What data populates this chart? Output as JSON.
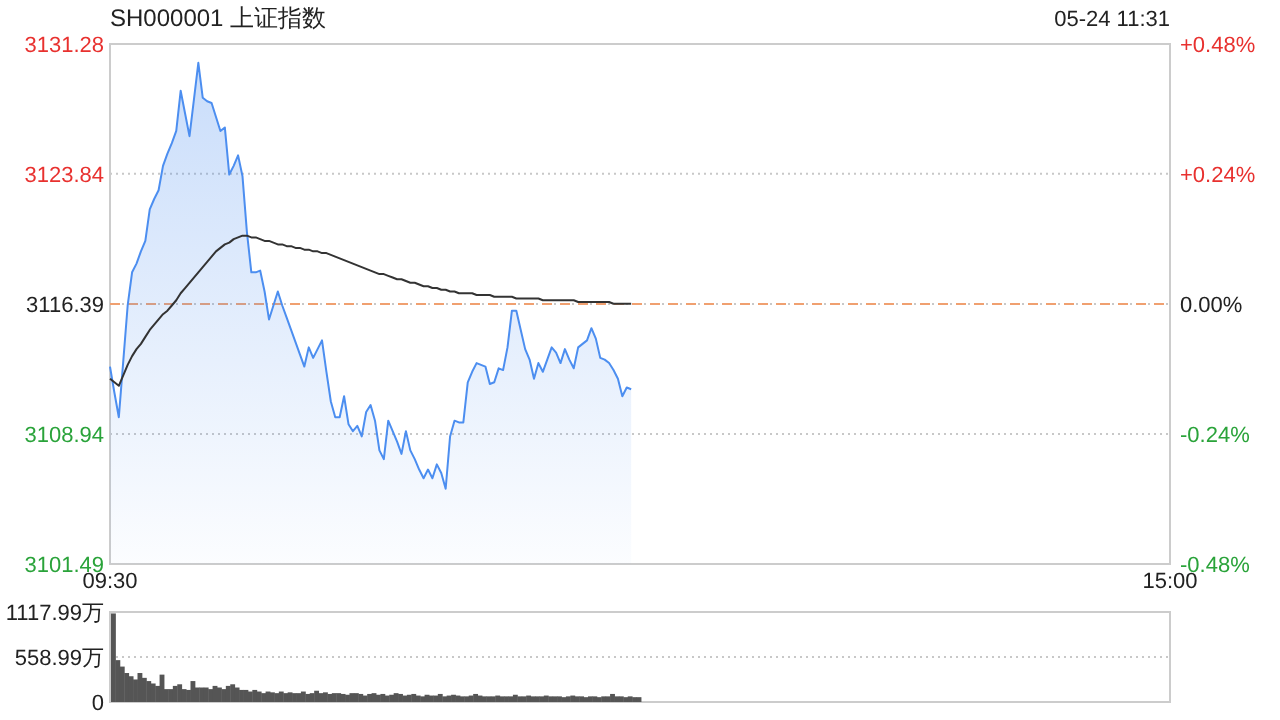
{
  "chart_data": [
    {
      "type": "line",
      "title": "SH000001 上证指数",
      "subtitle": "05-24 11:31",
      "categories": [
        "09:30",
        null,
        null,
        null,
        null,
        null,
        null,
        null,
        null,
        null,
        null,
        null,
        null,
        null,
        null,
        null,
        null,
        null,
        null,
        null,
        null,
        null,
        null,
        null,
        null,
        null,
        null,
        null,
        null,
        null,
        null,
        null,
        null,
        null,
        null,
        null,
        null,
        null,
        null,
        null,
        null,
        null,
        null,
        null,
        null,
        null,
        null,
        null,
        null,
        null,
        null,
        null,
        null,
        null,
        null,
        null,
        null,
        null,
        null,
        null,
        null,
        null,
        null,
        null,
        null,
        null,
        null,
        null,
        null,
        null,
        null,
        null,
        null,
        null,
        null,
        null,
        null,
        null,
        null,
        null,
        null,
        null,
        null,
        null,
        null,
        null,
        null,
        null,
        null,
        null,
        null,
        null,
        null,
        null,
        null,
        null,
        null,
        null,
        null,
        null,
        null,
        null,
        null,
        null,
        null,
        null,
        null,
        null,
        null,
        null,
        null,
        null,
        null,
        null,
        null,
        null,
        null,
        null,
        null,
        null,
        null,
        null,
        null,
        null,
        null,
        null,
        null,
        null,
        null,
        null,
        null,
        null,
        null,
        null,
        null,
        null,
        null,
        null,
        null,
        null,
        null,
        null,
        null,
        null,
        null,
        null,
        null,
        null,
        null,
        null,
        null,
        null,
        null,
        null,
        null,
        null,
        null,
        null,
        null,
        null,
        null,
        null,
        null,
        null,
        null,
        null,
        null,
        null,
        null,
        null,
        null,
        null,
        null,
        null,
        null,
        null,
        null,
        null,
        null,
        null,
        null,
        null,
        null,
        null,
        null,
        null,
        null,
        null,
        null,
        null,
        null,
        null,
        null,
        null,
        null,
        null,
        null,
        null,
        null,
        null,
        null,
        null,
        null,
        null,
        null,
        null,
        null,
        null,
        null,
        null,
        null,
        null,
        null,
        null,
        null,
        null,
        null,
        null,
        null,
        null,
        null,
        null,
        null,
        null,
        null,
        null,
        null,
        null,
        null,
        null,
        null,
        null,
        null,
        null,
        null,
        null,
        null,
        null,
        null,
        null,
        "15:00"
      ],
      "ylim": [
        3101.49,
        3131.28
      ],
      "yticks": [
        3101.49,
        3108.94,
        3116.39,
        3123.84,
        3131.28
      ],
      "y2lim": [
        -0.48,
        0.48
      ],
      "y2ticks": [
        {
          "value": -0.48,
          "label": "-0.48%"
        },
        {
          "value": -0.24,
          "label": "-0.24%"
        },
        {
          "value": 0,
          "label": "0.00%"
        },
        {
          "value": 0.24,
          "label": "+0.24%"
        },
        {
          "value": 0.48,
          "label": "+0.48%"
        }
      ],
      "grid": "y",
      "ref_lines": [
        {
          "axis": "y",
          "value": 3116.39,
          "color": "#f0a070",
          "line_style": "dashed"
        }
      ],
      "series": [
        {
          "type": "area",
          "color": "#4c8ef0",
          "values": [
            3112.8,
            3111.3,
            3109.9,
            3113.1,
            3116.3,
            3118.2,
            3118.7,
            3119.4,
            3120.0,
            3121.8,
            3122.4,
            3122.9,
            3124.3,
            3125.0,
            3125.6,
            3126.3,
            3128.6,
            3127.3,
            3126.0,
            3128.1,
            3130.2,
            3128.2,
            3128.0,
            3127.9,
            3127.1,
            3126.3,
            3126.5,
            3123.8,
            3124.3,
            3124.9,
            3123.7,
            3120.5,
            3118.2,
            3118.2,
            3118.3,
            3117.1,
            3115.5,
            3116.3,
            3117.1,
            3116.3,
            3115.6,
            3114.9,
            3114.2,
            3113.5,
            3112.8,
            3113.9,
            3113.3,
            3113.8,
            3114.3,
            3112.5,
            3110.8,
            3109.9,
            3109.9,
            3111.1,
            3109.5,
            3109.1,
            3109.4,
            3108.8,
            3110.2,
            3110.6,
            3109.7,
            3108.0,
            3107.5,
            3109.7,
            3109.1,
            3108.5,
            3107.8,
            3109.1,
            3108.0,
            3107.5,
            3106.9,
            3106.4,
            3106.9,
            3106.4,
            3107.2,
            3106.7,
            3105.8,
            3108.8,
            3109.7,
            3109.6,
            3109.6,
            3111.9,
            3112.5,
            3113.0,
            3112.9,
            3112.8,
            3111.8,
            3111.9,
            3112.7,
            3112.6,
            3113.9,
            3116.0,
            3116.0,
            3114.9,
            3113.8,
            3113.2,
            3112.1,
            3113.0,
            3112.5,
            3113.2,
            3113.9,
            3113.6,
            3113.0,
            3113.8,
            3113.2,
            3112.7,
            3113.9,
            3114.1,
            3114.3,
            3115.0,
            3114.4,
            3113.3,
            3113.2,
            3113.0,
            3112.6,
            3112.1,
            3111.1,
            3111.6,
            3111.5,
            null,
            null,
            null,
            null,
            null,
            null,
            null,
            null,
            null,
            null,
            null,
            null,
            null,
            null,
            null,
            null,
            null,
            null,
            null,
            null,
            null,
            null,
            null,
            null,
            null,
            null,
            null,
            null,
            null,
            null,
            null,
            null,
            null,
            null,
            null,
            null,
            null,
            null,
            null,
            null,
            null,
            null,
            null,
            null,
            null,
            null,
            null,
            null,
            null,
            null,
            null,
            null,
            null,
            null,
            null,
            null,
            null,
            null,
            null,
            null,
            null,
            null,
            null,
            null,
            null,
            null,
            null,
            null,
            null,
            null,
            null,
            null,
            null,
            null,
            null,
            null,
            null,
            null,
            null,
            null,
            null,
            null,
            null,
            null,
            null,
            null,
            null,
            null,
            null,
            null,
            null,
            null,
            null,
            null,
            null,
            null,
            null,
            null,
            null,
            null,
            null,
            null,
            null,
            null,
            null,
            null,
            null,
            null,
            null,
            null,
            null,
            null,
            null,
            null,
            null,
            null,
            null,
            null,
            null,
            null,
            null,
            null
          ]
        },
        {
          "type": "line",
          "color": "#333333",
          "values": [
            3112.1,
            3111.9,
            3111.7,
            3112.3,
            3112.9,
            3113.4,
            3113.8,
            3114.1,
            3114.5,
            3114.9,
            3115.2,
            3115.5,
            3115.8,
            3116.0,
            3116.3,
            3116.6,
            3117.0,
            3117.3,
            3117.6,
            3117.9,
            3118.2,
            3118.5,
            3118.8,
            3119.1,
            3119.4,
            3119.6,
            3119.8,
            3119.9,
            3120.1,
            3120.2,
            3120.3,
            3120.3,
            3120.2,
            3120.2,
            3120.1,
            3120.0,
            3120.0,
            3119.9,
            3119.8,
            3119.8,
            3119.7,
            3119.7,
            3119.6,
            3119.6,
            3119.5,
            3119.5,
            3119.4,
            3119.4,
            3119.3,
            3119.3,
            3119.2,
            3119.1,
            3119.0,
            3118.9,
            3118.8,
            3118.7,
            3118.6,
            3118.5,
            3118.4,
            3118.3,
            3118.2,
            3118.1,
            3118.1,
            3118.0,
            3117.9,
            3117.8,
            3117.8,
            3117.7,
            3117.6,
            3117.6,
            3117.5,
            3117.4,
            3117.4,
            3117.3,
            3117.3,
            3117.2,
            3117.2,
            3117.1,
            3117.1,
            3117.0,
            3117.0,
            3117.0,
            3117.0,
            3116.9,
            3116.9,
            3116.9,
            3116.9,
            3116.8,
            3116.8,
            3116.8,
            3116.8,
            3116.8,
            3116.7,
            3116.7,
            3116.7,
            3116.7,
            3116.7,
            3116.7,
            3116.6,
            3116.6,
            3116.6,
            3116.6,
            3116.6,
            3116.6,
            3116.6,
            3116.6,
            3116.5,
            3116.5,
            3116.5,
            3116.5,
            3116.5,
            3116.5,
            3116.5,
            3116.5,
            3116.4,
            3116.4,
            3116.4,
            3116.4,
            3116.4,
            null,
            null,
            null,
            null,
            null,
            null,
            null,
            null,
            null,
            null,
            null,
            null,
            null,
            null,
            null,
            null,
            null,
            null,
            null,
            null,
            null,
            null,
            null,
            null,
            null,
            null,
            null,
            null,
            null,
            null,
            null,
            null,
            null,
            null,
            null,
            null,
            null,
            null,
            null,
            null,
            null,
            null,
            null,
            null,
            null,
            null,
            null,
            null,
            null,
            null,
            null,
            null,
            null,
            null,
            null,
            null,
            null,
            null,
            null,
            null,
            null,
            null,
            null,
            null,
            null,
            null,
            null,
            null,
            null,
            null,
            null,
            null,
            null,
            null,
            null,
            null,
            null,
            null,
            null,
            null,
            null,
            null,
            null,
            null,
            null,
            null,
            null,
            null,
            null,
            null,
            null,
            null,
            null,
            null,
            null,
            null,
            null,
            null,
            null,
            null,
            null,
            null,
            null,
            null,
            null,
            null,
            null,
            null,
            null,
            null,
            null,
            null,
            null,
            null,
            null,
            null,
            null,
            null,
            null,
            null,
            null,
            null
          ]
        }
      ]
    },
    {
      "type": "bar",
      "ylim": [
        0,
        1117.99
      ],
      "yticks": [
        0,
        {
          "value": 558.99,
          "label": "558.99万"
        },
        {
          "value": 1117.99,
          "label": "1117.99万"
        }
      ],
      "grid": "y",
      "tick_labels": "y",
      "color": "#555555",
      "categories": [
        null,
        null,
        null,
        null,
        null,
        null,
        null,
        null,
        null,
        null,
        null,
        null,
        null,
        null,
        null,
        null,
        null,
        null,
        null,
        null,
        null,
        null,
        null,
        null,
        null,
        null,
        null,
        null,
        null,
        null,
        null,
        null,
        null,
        null,
        null,
        null,
        null,
        null,
        null,
        null,
        null,
        null,
        null,
        null,
        null,
        null,
        null,
        null,
        null,
        null,
        null,
        null,
        null,
        null,
        null,
        null,
        null,
        null,
        null,
        null,
        null,
        null,
        null,
        null,
        null,
        null,
        null,
        null,
        null,
        null,
        null,
        null,
        null,
        null,
        null,
        null,
        null,
        null,
        null,
        null,
        null,
        null,
        null,
        null,
        null,
        null,
        null,
        null,
        null,
        null,
        null,
        null,
        null,
        null,
        null,
        null,
        null,
        null,
        null,
        null,
        null,
        null,
        null,
        null,
        null,
        null,
        null,
        null,
        null,
        null,
        null,
        null,
        null,
        null,
        null,
        null,
        null,
        null,
        null,
        null,
        null,
        null,
        null,
        null,
        null,
        null,
        null,
        null,
        null,
        null,
        null,
        null,
        null,
        null,
        null,
        null,
        null,
        null,
        null,
        null,
        null,
        null,
        null,
        null,
        null,
        null,
        null,
        null,
        null,
        null,
        null,
        null,
        null,
        null,
        null,
        null,
        null,
        null,
        null,
        null,
        null,
        null,
        null,
        null,
        null,
        null,
        null,
        null,
        null,
        null,
        null,
        null,
        null,
        null,
        null,
        null,
        null,
        null,
        null,
        null,
        null,
        null,
        null,
        null,
        null,
        null,
        null,
        null,
        null,
        null,
        null,
        null,
        null,
        null,
        null,
        null,
        null,
        null,
        null,
        null,
        null,
        null,
        null,
        null,
        null,
        null,
        null,
        null,
        null,
        null,
        null,
        null,
        null,
        null,
        null,
        null,
        null,
        null,
        null,
        null,
        null,
        null,
        null,
        null,
        null,
        null,
        null,
        null,
        null,
        null,
        null,
        null,
        null,
        null,
        null,
        null,
        null,
        null,
        null,
        null,
        null
      ],
      "values": [
        1100,
        520,
        440,
        360,
        320,
        280,
        360,
        300,
        260,
        230,
        200,
        340,
        160,
        160,
        200,
        220,
        160,
        150,
        260,
        180,
        180,
        180,
        160,
        200,
        180,
        160,
        200,
        220,
        180,
        150,
        150,
        130,
        150,
        130,
        110,
        130,
        120,
        110,
        130,
        110,
        120,
        110,
        110,
        130,
        100,
        110,
        140,
        110,
        120,
        100,
        110,
        110,
        100,
        90,
        110,
        110,
        100,
        80,
        100,
        110,
        90,
        100,
        80,
        90,
        110,
        100,
        80,
        90,
        100,
        80,
        70,
        90,
        80,
        80,
        100,
        70,
        80,
        90,
        80,
        70,
        70,
        80,
        100,
        80,
        70,
        70,
        70,
        80,
        70,
        70,
        70,
        90,
        70,
        70,
        80,
        70,
        70,
        70,
        80,
        70,
        70,
        70,
        60,
        70,
        80,
        70,
        70,
        60,
        70,
        70,
        60,
        70,
        70,
        100,
        70,
        70,
        60,
        70,
        60,
        60,
        null,
        null,
        null,
        null,
        null,
        null,
        null,
        null,
        null,
        null,
        null,
        null,
        null,
        null,
        null,
        null,
        null,
        null,
        null,
        null,
        null,
        null,
        null,
        null,
        null,
        null,
        null,
        null,
        null,
        null,
        null,
        null,
        null,
        null,
        null,
        null,
        null,
        null,
        null,
        null,
        null,
        null,
        null,
        null,
        null,
        null,
        null,
        null,
        null,
        null,
        null,
        null,
        null,
        null,
        null,
        null,
        null,
        null,
        null,
        null,
        null,
        null,
        null,
        null,
        null,
        null,
        null,
        null,
        null,
        null,
        null,
        null,
        null,
        null,
        null,
        null,
        null,
        null,
        null,
        null,
        null,
        null,
        null,
        null,
        null,
        null,
        null,
        null,
        null,
        null,
        null,
        null,
        null,
        null,
        null,
        null,
        null,
        null,
        null,
        null,
        null,
        null,
        null,
        null,
        null,
        null,
        null,
        null,
        null,
        null,
        null,
        null,
        null,
        null,
        null,
        null,
        null,
        null,
        null,
        null,
        null
      ]
    }
  ]
}
